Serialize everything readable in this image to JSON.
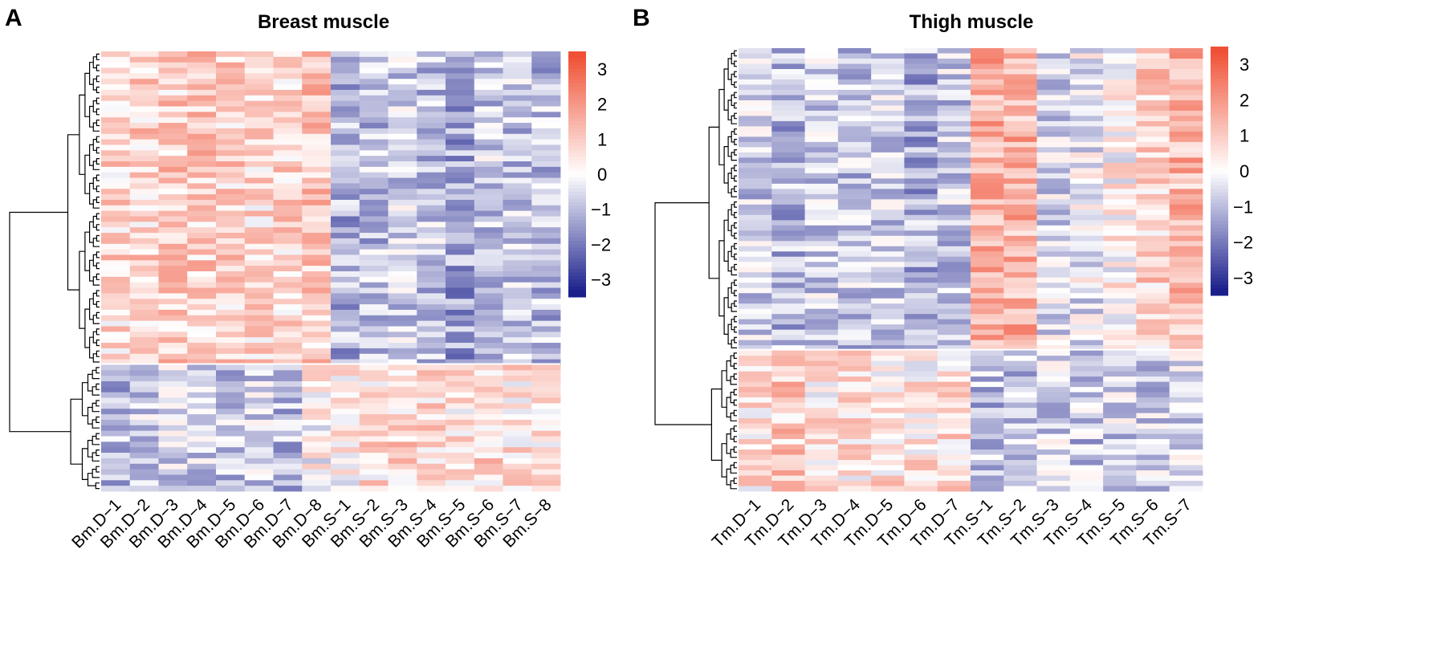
{
  "panels": [
    {
      "letter": "A",
      "title": "Breast muscle"
    },
    {
      "letter": "B",
      "title": "Thigh muscle"
    }
  ],
  "chart_data": [
    {
      "type": "heatmap",
      "title": "Breast muscle",
      "panel": "A",
      "columns": [
        "Bm.D−1",
        "Bm.D−2",
        "Bm.D−3",
        "Bm.D−4",
        "Bm.D−5",
        "Bm.D−6",
        "Bm.D−7",
        "Bm.D−8",
        "Bm.S−1",
        "Bm.S−2",
        "Bm.S−3",
        "Bm.S−4",
        "Bm.S−5",
        "Bm.S−6",
        "Bm.S−7",
        "Bm.S−8"
      ],
      "n_rows": 80,
      "clusters": [
        {
          "rows": 57,
          "base": [
            0.7,
            0.8,
            0.9,
            0.9,
            0.8,
            0.7,
            0.8,
            1.0,
            -1.1,
            -0.9,
            -0.6,
            -0.8,
            -1.3,
            -0.7,
            -0.8,
            -0.9
          ]
        },
        {
          "rows": 23,
          "base": [
            -0.9,
            -0.7,
            -0.6,
            -0.6,
            -0.8,
            -0.6,
            -0.9,
            0.1,
            0.2,
            0.6,
            0.8,
            0.8,
            0.4,
            0.7,
            0.5,
            0.5
          ]
        }
      ],
      "colorbar": {
        "min": -3.5,
        "max": 3.5,
        "ticks": [
          "3",
          "2",
          "1",
          "0",
          "−1",
          "−2",
          "−3"
        ],
        "tick_values": [
          3,
          2,
          1,
          0,
          -1,
          -2,
          -3
        ]
      },
      "colors": {
        "low": "#1a1f8c",
        "mid": "#ffffff",
        "high": "#f05035"
      }
    },
    {
      "type": "heatmap",
      "title": "Thigh muscle",
      "panel": "B",
      "columns": [
        "Tm.D−1",
        "Tm.D−2",
        "Tm.D−3",
        "Tm.D−4",
        "Tm.D−5",
        "Tm.D−6",
        "Tm.D−7",
        "Tm.S−1",
        "Tm.S−2",
        "Tm.S−3",
        "Tm.S−4",
        "Tm.S−5",
        "Tm.S−6",
        "Tm.S−7"
      ],
      "n_rows": 85,
      "clusters": [
        {
          "rows": 58,
          "base": [
            -0.7,
            -1.0,
            -0.7,
            -0.8,
            -0.7,
            -1.1,
            -0.7,
            1.5,
            1.4,
            -0.5,
            -0.3,
            0.2,
            0.8,
            1.3
          ]
        },
        {
          "rows": 27,
          "base": [
            0.5,
            0.9,
            0.4,
            0.5,
            0.5,
            0.4,
            0.6,
            -0.9,
            -0.9,
            -0.6,
            -0.8,
            -0.6,
            -0.7,
            -0.6
          ]
        }
      ],
      "colorbar": {
        "min": -3.5,
        "max": 3.5,
        "ticks": [
          "3",
          "2",
          "1",
          "0",
          "−1",
          "−2",
          "−3"
        ],
        "tick_values": [
          3,
          2,
          1,
          0,
          -1,
          -2,
          -3
        ]
      },
      "colors": {
        "low": "#1a1f8c",
        "mid": "#ffffff",
        "high": "#f05035"
      }
    }
  ]
}
